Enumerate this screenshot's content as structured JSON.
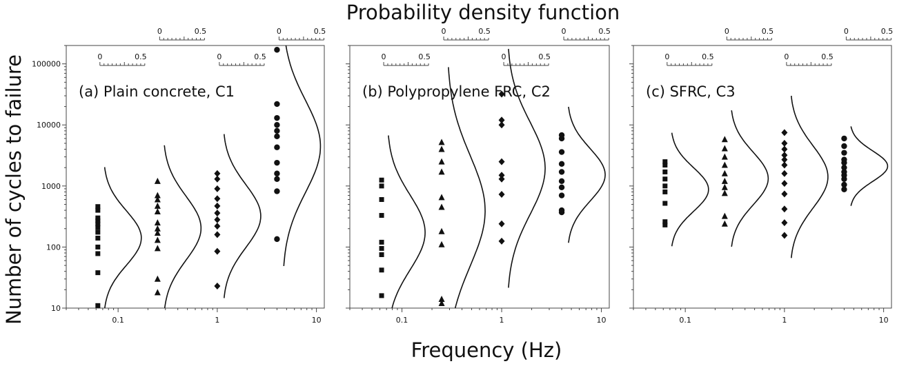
{
  "figure": {
    "top_title": "Probability density function",
    "ylabel": "Number of cycles to failure",
    "xlabel": "Frequency (Hz)"
  },
  "colors": {
    "ink": "#111111",
    "background": "#ffffff"
  },
  "chart_data": [
    {
      "type": "scatter",
      "title": "(a) Plain concrete, C1",
      "xscale": "log",
      "yscale": "log",
      "xlim": [
        0.03,
        12
      ],
      "ylim": [
        10,
        200000
      ],
      "x_ticks": [
        "0.1",
        "1",
        "10"
      ],
      "y_ticks": [
        "10",
        "100",
        "1000",
        "10000",
        "100000"
      ],
      "pdf_axis_ticks": [
        "0",
        "0.5"
      ],
      "series": [
        {
          "x": 0.0625,
          "marker": "square",
          "values": [
            11,
            38,
            78,
            100,
            140,
            175,
            210,
            240,
            270,
            300,
            400,
            460
          ]
        },
        {
          "x": 0.25,
          "marker": "triangle",
          "values": [
            18,
            30,
            95,
            130,
            170,
            200,
            250,
            380,
            470,
            600,
            700,
            1200
          ]
        },
        {
          "x": 1,
          "marker": "diamond",
          "values": [
            23,
            85,
            160,
            220,
            280,
            360,
            470,
            620,
            900,
            1300,
            1600
          ]
        },
        {
          "x": 4,
          "marker": "circle",
          "values": [
            135,
            820,
            1300,
            1600,
            2400,
            4300,
            6500,
            8000,
            10000,
            13000,
            22000,
            170000
          ]
        }
      ]
    },
    {
      "type": "scatter",
      "title": "(b) Polypropylene FRC, C2",
      "xscale": "log",
      "yscale": "log",
      "xlim": [
        0.03,
        12
      ],
      "ylim": [
        10,
        200000
      ],
      "x_ticks": [
        "0.1",
        "1",
        "10"
      ],
      "y_ticks": [],
      "pdf_axis_ticks": [
        "0",
        "0.5"
      ],
      "series": [
        {
          "x": 0.0625,
          "marker": "square",
          "values": [
            16,
            42,
            75,
            95,
            120,
            330,
            600,
            1000,
            1250
          ]
        },
        {
          "x": 0.25,
          "marker": "triangle",
          "values": [
            12,
            14,
            110,
            180,
            450,
            650,
            1700,
            2500,
            4000,
            5200
          ]
        },
        {
          "x": 1,
          "marker": "diamond",
          "values": [
            125,
            240,
            730,
            1300,
            1500,
            2500,
            10000,
            12000,
            32000
          ]
        },
        {
          "x": 4,
          "marker": "circle",
          "values": [
            370,
            400,
            700,
            950,
            1200,
            1700,
            2300,
            3600,
            6000,
            6800
          ]
        }
      ]
    },
    {
      "type": "scatter",
      "title": "(c) SFRC, C3",
      "xscale": "log",
      "yscale": "log",
      "xlim": [
        0.03,
        12
      ],
      "ylim": [
        10,
        200000
      ],
      "x_ticks": [
        "0.1",
        "1",
        "10"
      ],
      "y_ticks": [],
      "pdf_axis_ticks": [
        "0",
        "0.5"
      ],
      "series": [
        {
          "x": 0.0625,
          "marker": "square",
          "values": [
            230,
            260,
            520,
            800,
            1000,
            1300,
            1700,
            2200,
            2500
          ]
        },
        {
          "x": 0.25,
          "marker": "triangle",
          "values": [
            240,
            320,
            760,
            950,
            1200,
            1600,
            2200,
            3000,
            4100,
            5800
          ]
        },
        {
          "x": 1,
          "marker": "diamond",
          "values": [
            155,
            250,
            420,
            740,
            1100,
            1600,
            2200,
            2700,
            3200,
            4000,
            5000,
            7500
          ]
        },
        {
          "x": 4,
          "marker": "circle",
          "values": [
            880,
            1050,
            1300,
            1500,
            1700,
            2000,
            2400,
            2700,
            3500,
            4500,
            6000
          ]
        }
      ]
    }
  ]
}
